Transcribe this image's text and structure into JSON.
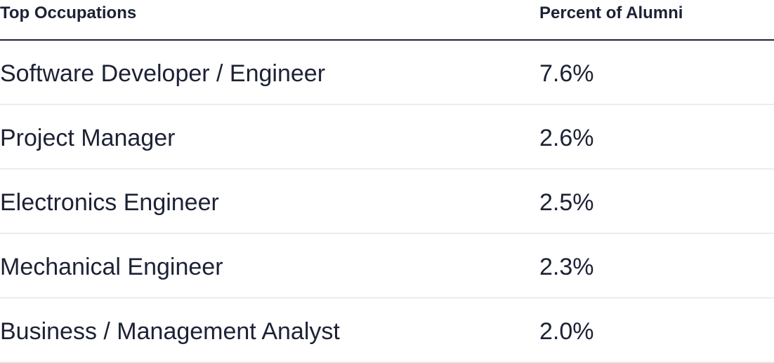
{
  "table": {
    "headers": {
      "occupation": "Top Occupations",
      "percent": "Percent of Alumni"
    },
    "rows": [
      {
        "occupation": "Software Developer / Engineer",
        "percent": "7.6%"
      },
      {
        "occupation": "Project Manager",
        "percent": "2.6%"
      },
      {
        "occupation": "Electronics Engineer",
        "percent": "2.5%"
      },
      {
        "occupation": "Mechanical Engineer",
        "percent": "2.3%"
      },
      {
        "occupation": "Business / Management Analyst",
        "percent": "2.0%"
      }
    ]
  },
  "colors": {
    "text": "#1c2235",
    "header_rule": "#1e2233",
    "row_divider": "#ececec",
    "background": "#ffffff"
  }
}
